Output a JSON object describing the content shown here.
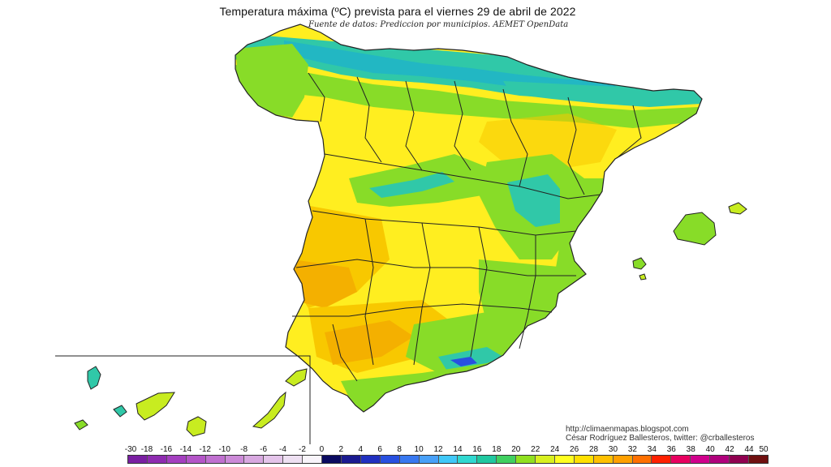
{
  "header": {
    "title": "Temperatura máxima (ºC) prevista para el viernes 29 de abril de 2022",
    "subtitle": "Fuente de datos: Prediccion por municipios. AEMET OpenData"
  },
  "credits": {
    "site": "http://climaenmapas.blogspot.com",
    "author": "César Rodríguez Ballesteros, twitter: @crballesteros"
  },
  "legend": {
    "labels": [
      "-30",
      "-18",
      "-16",
      "-14",
      "-12",
      "-10",
      "-8",
      "-6",
      "-4",
      "-2",
      "0",
      "2",
      "4",
      "6",
      "8",
      "10",
      "12",
      "14",
      "16",
      "18",
      "20",
      "22",
      "24",
      "26",
      "28",
      "30",
      "32",
      "34",
      "36",
      "38",
      "40",
      "42",
      "44",
      "50"
    ],
    "colors": [
      "#7a1fa2",
      "#8e2bb0",
      "#a43fc0",
      "#b455c8",
      "#c070d0",
      "#cc8ad8",
      "#d8a8e0",
      "#e4c4ea",
      "#eee0f2",
      "#f8f4fa",
      "#0a0a60",
      "#1a1a90",
      "#2030c0",
      "#2850e0",
      "#3878f0",
      "#48a0f8",
      "#40c8f8",
      "#30d8d0",
      "#20c8a0",
      "#40d060",
      "#90e020",
      "#d8f020",
      "#ffff20",
      "#ffe000",
      "#ffc000",
      "#ffa000",
      "#ff7000",
      "#ff2000",
      "#e80060",
      "#d0008c",
      "#b0007c",
      "#900050",
      "#701010"
    ]
  },
  "map": {
    "colors": {
      "warm": "#f8c800",
      "orange": "#f4b000",
      "yellow": "#ffee20",
      "lime": "#c8ec20",
      "green": "#88dc28",
      "teal": "#30c8a8",
      "cyan": "#20b4c8",
      "border": "#222222",
      "water": "#ffffff"
    }
  }
}
